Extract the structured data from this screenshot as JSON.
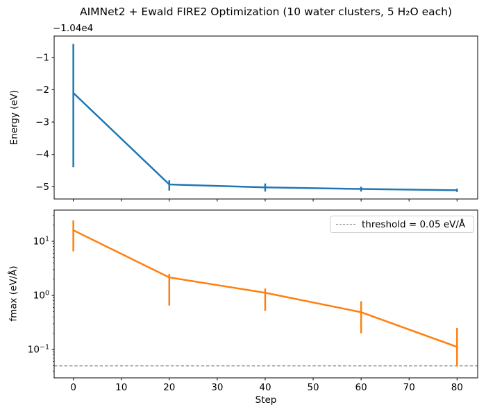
{
  "figure": {
    "title": "AIMNet2 + Ewald FIRE2 Optimization (10 water clusters, 5 H₂O each)",
    "background": "#ffffff"
  },
  "colors": {
    "energy_line": "#1f77b4",
    "fmax_line": "#ff7f0e",
    "threshold_line": "#8c8c8c",
    "axis": "#000000",
    "legend_border": "#cccccc"
  },
  "chart_data": [
    {
      "type": "line",
      "id": "energy",
      "ylabel": "Energy (eV)",
      "y_offset_label": "−1.04e4",
      "y_offset_value": -10400,
      "x": [
        0,
        20,
        40,
        60,
        80
      ],
      "y": [
        -2.1,
        -4.93,
        -5.02,
        -5.07,
        -5.11
      ],
      "y_err_low": [
        -4.4,
        -5.12,
        -5.15,
        -5.15,
        -5.16
      ],
      "y_err_high": [
        -0.58,
        -4.8,
        -4.9,
        -5.0,
        -5.06
      ],
      "yscale": "linear",
      "xlim": [
        -4,
        84.3
      ],
      "ylim": [
        -5.38,
        -0.34
      ],
      "xticks": {
        "values": [
          0,
          10,
          20,
          30,
          40,
          50,
          60,
          70,
          80
        ],
        "labels": []
      },
      "yticks": {
        "values": [
          -1,
          -2,
          -3,
          -4,
          -5
        ],
        "labels": [
          "−1",
          "−2",
          "−3",
          "−4",
          "−5"
        ]
      },
      "line_color": "#1f77b4",
      "grid": false
    },
    {
      "type": "line",
      "id": "fmax",
      "ylabel": "fmax (eV/Å)",
      "xlabel": "Step",
      "x": [
        0,
        20,
        40,
        60,
        80
      ],
      "y": [
        16.0,
        2.15,
        1.12,
        0.49,
        0.112
      ],
      "y_err_low": [
        6.5,
        0.65,
        0.52,
        0.2,
        0.049
      ],
      "y_err_high": [
        24.3,
        2.5,
        1.34,
        0.78,
        0.25
      ],
      "yscale": "log",
      "xlim": [
        -4,
        84.3
      ],
      "ylim": [
        0.03,
        37.7
      ],
      "xticks": {
        "values": [
          0,
          10,
          20,
          30,
          40,
          50,
          60,
          70,
          80
        ],
        "labels": [
          "0",
          "10",
          "20",
          "30",
          "40",
          "50",
          "60",
          "70",
          "80"
        ]
      },
      "yticks": {
        "values": [
          10,
          1,
          0.1
        ],
        "labels": [
          "10^1",
          "10^0",
          "10^−1"
        ]
      },
      "threshold": {
        "value": 0.05,
        "label": "threshold = 0.05 eV/Å",
        "color": "#8c8c8c",
        "style": "dashed"
      },
      "legend": {
        "position": "upper-right"
      },
      "line_color": "#ff7f0e",
      "grid": false
    }
  ]
}
